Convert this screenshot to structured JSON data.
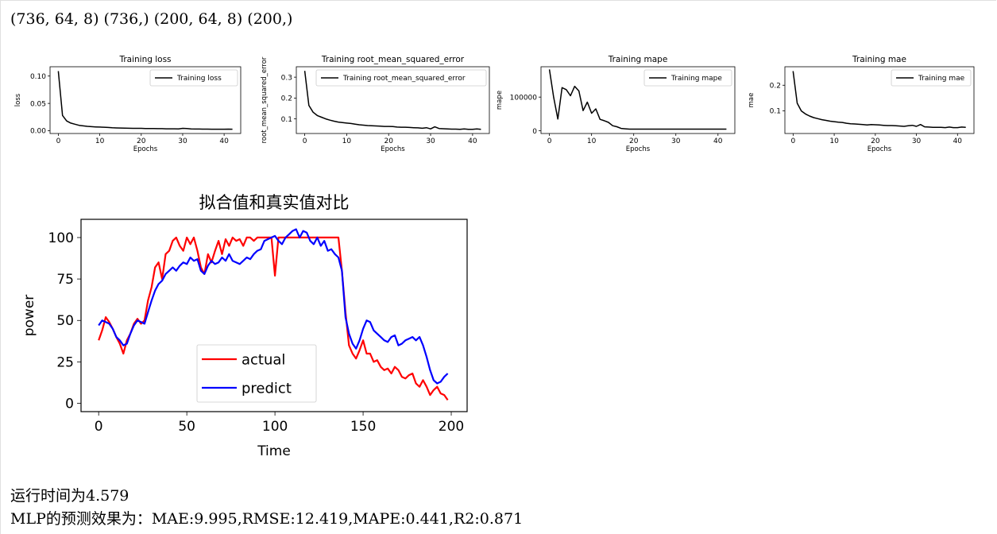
{
  "output": {
    "shapes_line": "(736, 64, 8) (736,) (200, 64, 8) (200,)",
    "runtime_line": "运行时间为4.579",
    "metrics_line": "MLP的预测效果为：MAE:9.995,RMSE:12.419,MAPE:0.441,R2:0.871"
  },
  "colors": {
    "training_line": "#000000",
    "actual": "#ff0000",
    "predict": "#0000ff"
  },
  "chart_data": [
    {
      "type": "line",
      "title": "Training loss",
      "xlabel": "Epochs",
      "ylabel": "loss",
      "xlim": [
        -2,
        44
      ],
      "ylim": [
        -0.005,
        0.117
      ],
      "xticks": [
        0,
        10,
        20,
        30,
        40
      ],
      "yticks": [
        0.0,
        0.05,
        0.1
      ],
      "ytick_labels": [
        "0.00",
        "0.05",
        "0.10"
      ],
      "legend": "upper right",
      "series": [
        {
          "name": "Training loss",
          "x": [
            0,
            1,
            2,
            3,
            4,
            5,
            6,
            7,
            8,
            9,
            10,
            11,
            12,
            13,
            14,
            15,
            16,
            17,
            18,
            19,
            20,
            21,
            22,
            23,
            24,
            25,
            26,
            27,
            28,
            29,
            30,
            31,
            32,
            33,
            34,
            35,
            36,
            37,
            38,
            39,
            40,
            41,
            42
          ],
          "values": [
            0.109,
            0.028,
            0.018,
            0.014,
            0.012,
            0.01,
            0.009,
            0.008,
            0.0075,
            0.007,
            0.0068,
            0.0065,
            0.006,
            0.0055,
            0.0052,
            0.005,
            0.0048,
            0.0046,
            0.0045,
            0.0045,
            0.0044,
            0.0042,
            0.0041,
            0.004,
            0.0039,
            0.0038,
            0.0036,
            0.0035,
            0.0035,
            0.0034,
            0.0045,
            0.004,
            0.0033,
            0.0032,
            0.0031,
            0.003,
            0.003,
            0.0029,
            0.0029,
            0.0028,
            0.0028,
            0.003,
            0.0029
          ]
        }
      ]
    },
    {
      "type": "line",
      "title": "Training root_mean_squared_error",
      "xlabel": "Epochs",
      "ylabel": "root_mean_squared_error",
      "xlim": [
        -2,
        44
      ],
      "ylim": [
        0.03,
        0.35
      ],
      "xticks": [
        0,
        10,
        20,
        30,
        40
      ],
      "yticks": [
        0.1,
        0.2,
        0.3
      ],
      "ytick_labels": [
        "0.1",
        "0.2",
        "0.3"
      ],
      "legend": "upper right",
      "series": [
        {
          "name": "Training root_mean_squared_error",
          "x": [
            0,
            1,
            2,
            3,
            4,
            5,
            6,
            7,
            8,
            9,
            10,
            11,
            12,
            13,
            14,
            15,
            16,
            17,
            18,
            19,
            20,
            21,
            22,
            23,
            24,
            25,
            26,
            27,
            28,
            29,
            30,
            31,
            32,
            33,
            34,
            35,
            36,
            37,
            38,
            39,
            40,
            41,
            42
          ],
          "values": [
            0.33,
            0.165,
            0.132,
            0.116,
            0.108,
            0.1,
            0.094,
            0.089,
            0.085,
            0.082,
            0.08,
            0.078,
            0.075,
            0.072,
            0.07,
            0.068,
            0.067,
            0.066,
            0.065,
            0.064,
            0.064,
            0.063,
            0.061,
            0.06,
            0.06,
            0.059,
            0.058,
            0.057,
            0.055,
            0.058,
            0.052,
            0.062,
            0.054,
            0.053,
            0.052,
            0.051,
            0.051,
            0.05,
            0.052,
            0.05,
            0.05,
            0.052,
            0.05
          ]
        }
      ]
    },
    {
      "type": "line",
      "title": "Training mape",
      "xlabel": "Epochs",
      "ylabel": "mape",
      "xlim": [
        -2,
        44
      ],
      "ylim": [
        -8000,
        190000
      ],
      "xticks": [
        0,
        10,
        20,
        30,
        40
      ],
      "yticks": [
        0,
        100000
      ],
      "ytick_labels": [
        "0",
        "100000"
      ],
      "legend": "upper right",
      "series": [
        {
          "name": "Training mape",
          "x": [
            0,
            1,
            2,
            3,
            4,
            5,
            6,
            7,
            8,
            9,
            10,
            11,
            12,
            13,
            14,
            15,
            16,
            17,
            18,
            19,
            20,
            21,
            22,
            23,
            24,
            25,
            26,
            27,
            28,
            29,
            30,
            31,
            32,
            33,
            34,
            35,
            36,
            37,
            38,
            39,
            40,
            41,
            42
          ],
          "values": [
            182000,
            100000,
            35000,
            128000,
            122000,
            104000,
            132000,
            118000,
            60000,
            85000,
            52000,
            65000,
            34000,
            30000,
            25000,
            15000,
            12000,
            7000,
            6000,
            5000,
            5000,
            5000,
            5000,
            5000,
            5000,
            5000,
            5000,
            5000,
            5000,
            5000,
            5000,
            5000,
            5000,
            5000,
            5000,
            5000,
            5000,
            5000,
            5000,
            5000,
            5000,
            5000,
            5000
          ]
        }
      ]
    },
    {
      "type": "line",
      "title": "Training mae",
      "xlabel": "Epochs",
      "ylabel": "mae",
      "xlim": [
        -2,
        44
      ],
      "ylim": [
        0.012,
        0.272
      ],
      "xticks": [
        0,
        10,
        20,
        30,
        40
      ],
      "yticks": [
        0.1,
        0.2
      ],
      "ytick_labels": [
        "0.1",
        "0.2"
      ],
      "legend": "upper right",
      "series": [
        {
          "name": "Training mae",
          "x": [
            0,
            1,
            2,
            3,
            4,
            5,
            6,
            7,
            8,
            9,
            10,
            11,
            12,
            13,
            14,
            15,
            16,
            17,
            18,
            19,
            20,
            21,
            22,
            23,
            24,
            25,
            26,
            27,
            28,
            29,
            30,
            31,
            32,
            33,
            34,
            35,
            36,
            37,
            38,
            39,
            40,
            41,
            42
          ],
          "values": [
            0.255,
            0.13,
            0.1,
            0.088,
            0.08,
            0.074,
            0.07,
            0.066,
            0.063,
            0.06,
            0.058,
            0.056,
            0.055,
            0.052,
            0.05,
            0.049,
            0.048,
            0.047,
            0.045,
            0.047,
            0.046,
            0.045,
            0.044,
            0.043,
            0.043,
            0.042,
            0.041,
            0.04,
            0.042,
            0.044,
            0.04,
            0.047,
            0.038,
            0.037,
            0.036,
            0.036,
            0.036,
            0.035,
            0.037,
            0.035,
            0.035,
            0.037,
            0.036
          ]
        }
      ]
    },
    {
      "type": "line",
      "title": "拟合值和真实值对比",
      "xlabel": "Time",
      "ylabel": "power",
      "xlim": [
        -10,
        209
      ],
      "ylim": [
        -5,
        111
      ],
      "xticks": [
        0,
        50,
        100,
        150,
        200
      ],
      "yticks": [
        0,
        25,
        50,
        75,
        100
      ],
      "legend": "lower center",
      "x": [
        0,
        2,
        4,
        6,
        8,
        10,
        12,
        14,
        16,
        18,
        20,
        22,
        24,
        26,
        28,
        30,
        32,
        34,
        36,
        38,
        40,
        42,
        44,
        46,
        48,
        50,
        52,
        54,
        56,
        58,
        60,
        62,
        64,
        66,
        68,
        70,
        72,
        74,
        76,
        78,
        80,
        82,
        84,
        86,
        88,
        90,
        92,
        94,
        96,
        98,
        100,
        102,
        104,
        106,
        108,
        110,
        112,
        114,
        116,
        118,
        120,
        122,
        124,
        126,
        128,
        130,
        132,
        134,
        136,
        138,
        140,
        142,
        144,
        146,
        148,
        150,
        152,
        154,
        156,
        158,
        160,
        162,
        164,
        166,
        168,
        170,
        172,
        174,
        176,
        178,
        180,
        182,
        184,
        186,
        188,
        190,
        192,
        194,
        196,
        198
      ],
      "series": [
        {
          "name": "actual",
          "values": [
            38,
            44,
            52,
            49,
            45,
            40,
            36,
            30,
            38,
            42,
            48,
            51,
            48,
            50,
            62,
            70,
            82,
            85,
            75,
            90,
            92,
            98,
            100,
            95,
            92,
            100,
            96,
            100,
            92,
            82,
            78,
            90,
            85,
            92,
            98,
            90,
            99,
            95,
            100,
            98,
            99,
            95,
            100,
            100,
            98,
            100,
            100,
            100,
            100,
            100,
            77,
            100,
            100,
            100,
            100,
            100,
            100,
            100,
            100,
            100,
            100,
            100,
            100,
            100,
            100,
            100,
            100,
            100,
            100,
            80,
            55,
            35,
            30,
            27,
            32,
            38,
            30,
            30,
            25,
            26,
            22,
            20,
            21,
            18,
            22,
            20,
            16,
            15,
            17,
            18,
            12,
            10,
            14,
            10,
            5,
            8,
            10,
            6,
            5,
            2
          ]
        },
        {
          "name": "predict",
          "values": [
            47,
            50,
            49,
            48,
            45,
            40,
            38,
            35,
            36,
            42,
            47,
            50,
            49,
            48,
            55,
            62,
            68,
            72,
            74,
            78,
            80,
            82,
            80,
            83,
            85,
            84,
            88,
            86,
            87,
            80,
            78,
            83,
            86,
            84,
            85,
            88,
            86,
            90,
            86,
            85,
            84,
            86,
            88,
            87,
            90,
            92,
            93,
            98,
            99,
            100,
            101,
            98,
            96,
            100,
            102,
            104,
            105,
            100,
            104,
            103,
            98,
            96,
            100,
            95,
            98,
            92,
            93,
            90,
            88,
            80,
            52,
            42,
            36,
            33,
            38,
            45,
            50,
            49,
            44,
            42,
            40,
            38,
            37,
            40,
            41,
            35,
            36,
            38,
            39,
            40,
            38,
            40,
            35,
            28,
            20,
            14,
            12,
            13,
            16,
            18
          ]
        }
      ]
    }
  ]
}
